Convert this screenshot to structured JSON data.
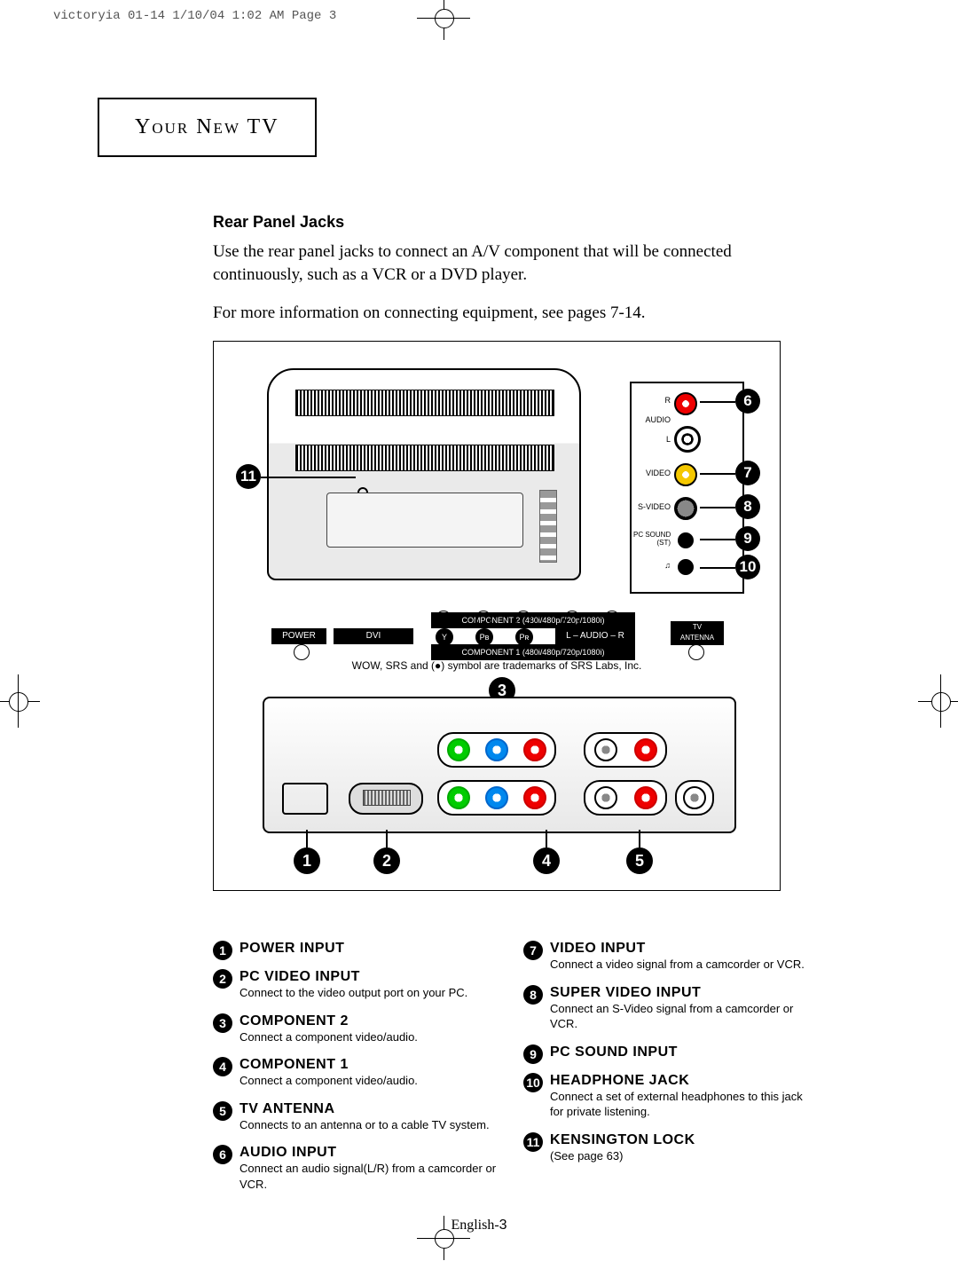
{
  "header_meta": "victoryia 01-14  1/10/04 1:02 AM  Page 3",
  "section_box": "Your New TV",
  "subsection": "Rear Panel Jacks",
  "para1": "Use the rear panel jacks to connect an A/V component that will be connected continuously, such as a VCR or a DVD player.",
  "para2": "For more information on connecting equipment, see pages 7-14.",
  "side_labels": {
    "r": "R",
    "audio": "AUDIO",
    "l": "L",
    "video": "VIDEO",
    "svideo": "S-VIDEO",
    "pcsound": "PC SOUND\n(ST)",
    "headphone": "♫"
  },
  "label_row": {
    "comp2": "COMPONENT 2 (480i/480p/720p/1080i)",
    "power": "POWER",
    "dvi": "DVI",
    "y": "Y",
    "pb": "Pʙ",
    "pr": "Pʀ",
    "audio": "L – AUDIO – R",
    "antenna": "TV\nANTENNA",
    "comp1": "COMPONENT 1 (480i/480p/720p/1080i)"
  },
  "trademark": "WOW, SRS and (●) symbol are trademarks of SRS Labs, Inc.",
  "defs_left": [
    {
      "n": "1",
      "t": "POWER INPUT",
      "d": ""
    },
    {
      "n": "2",
      "t": "PC VIDEO INPUT",
      "d": "Connect to the video output port on your PC."
    },
    {
      "n": "3",
      "t": "COMPONENT 2",
      "d": "Connect a component video/audio."
    },
    {
      "n": "4",
      "t": "COMPONENT 1",
      "d": "Connect a component video/audio."
    },
    {
      "n": "5",
      "t": "TV ANTENNA",
      "d": "Connects to an antenna or to a cable TV system."
    },
    {
      "n": "6",
      "t": "AUDIO INPUT",
      "d": "Connect an audio signal(L/R) from a camcorder or VCR."
    }
  ],
  "defs_right": [
    {
      "n": "7",
      "t": "VIDEO INPUT",
      "d": "Connect a  video signal from a camcorder or VCR."
    },
    {
      "n": "8",
      "t": "SUPER VIDEO INPUT",
      "d": "Connect an S-Video signal from a camcorder or VCR."
    },
    {
      "n": "9",
      "t": "PC SOUND INPUT",
      "d": ""
    },
    {
      "n": "10",
      "t": "HEADPHONE JACK",
      "d": "Connect a set of external headphones to this jack for private listening."
    },
    {
      "n": "11",
      "t": "KENSINGTON LOCK",
      "d": "(See page 63)"
    }
  ],
  "page_number_prefix": "English-",
  "page_number": "3",
  "colors": {
    "red": "#e00000",
    "yellow": "#f5c800",
    "green": "#00aa00",
    "blue": "#0066cc",
    "black": "#000000",
    "white": "#ffffff",
    "panel_grey": "#e8e8e8"
  }
}
